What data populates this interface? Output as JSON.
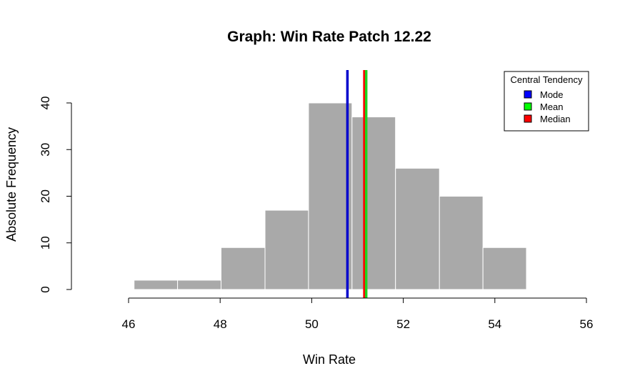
{
  "chart_data": {
    "type": "bar",
    "title": "Graph: Win Rate Patch 12.22",
    "xlabel": "Win Rate",
    "ylabel": "Absolute Frequency",
    "bins": [
      {
        "start": 46.12,
        "end": 47.07,
        "count": 2
      },
      {
        "start": 47.07,
        "end": 48.02,
        "count": 2
      },
      {
        "start": 48.02,
        "end": 48.98,
        "count": 9
      },
      {
        "start": 48.98,
        "end": 49.93,
        "count": 17
      },
      {
        "start": 49.93,
        "end": 50.88,
        "count": 40
      },
      {
        "start": 50.88,
        "end": 51.83,
        "count": 37
      },
      {
        "start": 51.83,
        "end": 52.79,
        "count": 26
      },
      {
        "start": 52.79,
        "end": 53.74,
        "count": 20
      },
      {
        "start": 53.74,
        "end": 54.69,
        "count": 9
      }
    ],
    "xlim": [
      46,
      56
    ],
    "ylim": [
      0,
      40
    ],
    "xticks": [
      "46",
      "48",
      "50",
      "52",
      "54",
      "56"
    ],
    "yticks": [
      "0",
      "10",
      "20",
      "30",
      "40"
    ],
    "bar_color": "#a9a9a9",
    "grid": false,
    "reference_lines": [
      {
        "name": "Mode",
        "value": 50.78,
        "color": "#0000cd"
      },
      {
        "name": "Median",
        "value": 51.15,
        "color": "#ff0000"
      },
      {
        "name": "Mean",
        "value": 51.19,
        "color": "#1fd21f"
      }
    ],
    "legend": {
      "title": "Central Tendency",
      "placement": "top-right",
      "items": [
        {
          "label": "Mode",
          "color": "#0000ff"
        },
        {
          "label": "Mean",
          "color": "#00ff00"
        },
        {
          "label": "Median",
          "color": "#ff0000"
        }
      ]
    }
  }
}
